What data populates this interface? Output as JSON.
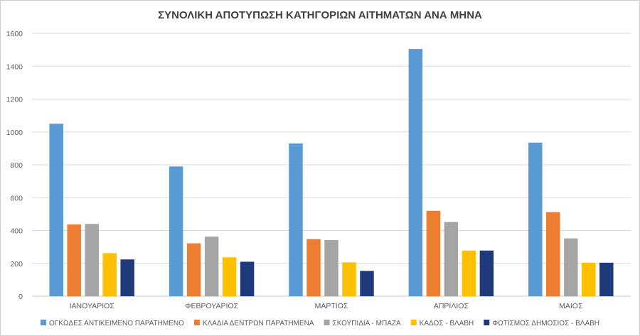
{
  "chart_data": {
    "type": "bar",
    "title": "ΣΥΝΟΛΙΚΗ ΑΠΟΤΥΠΩΣΗ ΚΑΤΗΓΟΡΙΩΝ ΑΙΤΗΜΑΤΩΝ ΑΝΑ ΜΗΝΑ",
    "xlabel": "",
    "ylabel": "",
    "ylim": [
      0,
      1600
    ],
    "yticks": [
      0,
      200,
      400,
      600,
      800,
      1000,
      1200,
      1400,
      1600
    ],
    "grid": true,
    "legend_position": "bottom",
    "categories": [
      "ΙΑΝΟΥΑΡΙΟΣ",
      "ΦΕΒΡΟΥΑΡΙΟΣ",
      "ΜΑΡΤΙΟΣ",
      "ΑΠΡΙΛΙΟΣ",
      "ΜΑΙΟΣ"
    ],
    "series": [
      {
        "name": "ΟΓΚΩΔΕΣ ΑΝΤΙΚΕΙΜΕΝΟ ΠΑΡΑΤΗΜΕΝΟ",
        "color": "#5B9BD5",
        "values": [
          1050,
          790,
          930,
          1505,
          935
        ]
      },
      {
        "name": "ΚΛΑΔΙΑ ΔΕΝΤΡΩΝ ΠΑΡΑΤΗΜΕΝΑ",
        "color": "#ED7D31",
        "values": [
          437,
          322,
          348,
          520,
          512
        ]
      },
      {
        "name": "ΣΚΟΥΠΙΔΙΑ - ΜΠΑΖΑ",
        "color": "#A5A5A5",
        "values": [
          440,
          363,
          342,
          452,
          352
        ]
      },
      {
        "name": "ΚΑΔΟΣ - ΒΛΑΒΗ",
        "color": "#FFC000",
        "values": [
          262,
          237,
          206,
          278,
          204
        ]
      },
      {
        "name": "ΦΩΤΙΣΜΟΣ ΔΗΜΟΣΙΟΣ - ΒΛΑΒΗ",
        "color": "#1F3A7A",
        "values": [
          224,
          210,
          154,
          278,
          204
        ]
      }
    ]
  }
}
